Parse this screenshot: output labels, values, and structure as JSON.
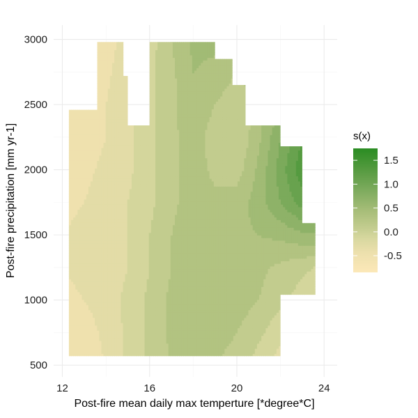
{
  "chart_data": {
    "type": "heatmap",
    "subtype": "filled-contour",
    "title": "",
    "xlabel": "Post-fire mean daily max temperture [*degree*C]",
    "ylabel": "Post-fire precipitation [mm yr-1]",
    "xlim": [
      11.6,
      24.6
    ],
    "ylim": [
      410,
      3110
    ],
    "x_ticks": [
      12,
      16,
      20,
      24
    ],
    "y_ticks": [
      500,
      1000,
      1500,
      2000,
      2500,
      3000
    ],
    "grid": true,
    "legend": {
      "title": "s(x)",
      "placement": "right",
      "range": [
        -0.85,
        1.75
      ],
      "ticks": [
        -0.5,
        0.0,
        0.5,
        1.0,
        1.5
      ],
      "tick_labels": [
        "-0.5",
        "0.0",
        "0.5",
        "1.0",
        "1.5"
      ],
      "color_low": "#fce8b8",
      "color_high": "#2a8c22"
    },
    "levels": [
      -0.8,
      -0.6,
      -0.4,
      -0.2,
      0.0,
      0.2,
      0.4,
      0.6,
      0.8,
      1.0,
      1.2,
      1.4,
      1.6
    ],
    "color_stops": [
      {
        "value": -0.85,
        "color": "#fce8b8"
      },
      {
        "value": -0.45,
        "color": "#ede0ad"
      },
      {
        "value": -0.15,
        "color": "#d8d8a0"
      },
      {
        "value": 0.1,
        "color": "#c2cc8e"
      },
      {
        "value": 0.45,
        "color": "#a6bd78"
      },
      {
        "value": 0.8,
        "color": "#84ae62"
      },
      {
        "value": 1.2,
        "color": "#5f9e47"
      },
      {
        "value": 1.75,
        "color": "#2a8c22"
      }
    ],
    "data_region": [
      {
        "x_range": [
          12.3,
          13.6
        ],
        "y_range": [
          570,
          1500
        ]
      },
      {
        "x_range": [
          12.3,
          13.6
        ],
        "y_range": [
          1500,
          2460
        ]
      },
      {
        "x_range": [
          13.6,
          14.8
        ],
        "y_range": [
          570,
          2980
        ]
      },
      {
        "x_range": [
          14.8,
          15.0
        ],
        "y_range": [
          570,
          2720
        ]
      },
      {
        "x_range": [
          15.0,
          16.0
        ],
        "y_range": [
          570,
          2340
        ]
      },
      {
        "x_range": [
          16.0,
          19.0
        ],
        "y_range": [
          570,
          2980
        ]
      },
      {
        "x_range": [
          19.0,
          19.8
        ],
        "y_range": [
          570,
          2850
        ]
      },
      {
        "x_range": [
          19.8,
          20.4
        ],
        "y_range": [
          570,
          2650
        ]
      },
      {
        "x_range": [
          20.4,
          22.0
        ],
        "y_range": [
          570,
          2340
        ]
      },
      {
        "x_range": [
          22.0,
          23.0
        ],
        "y_range": [
          1040,
          2180
        ]
      },
      {
        "x_range": [
          23.0,
          23.6
        ],
        "y_range": [
          1040,
          1590
        ]
      }
    ],
    "surface": {
      "x": [
        12.0,
        13.0,
        14.0,
        15.0,
        16.0,
        17.0,
        18.0,
        19.0,
        20.0,
        21.0,
        22.0,
        23.0,
        24.0
      ],
      "y": [
        500,
        750,
        1000,
        1250,
        1500,
        1750,
        2000,
        2250,
        2500,
        2750,
        3000
      ],
      "z": [
        [
          -0.6,
          -0.5,
          -0.4,
          -0.15,
          0.05,
          0.2,
          0.25,
          0.2,
          0.1,
          -0.1,
          -0.3,
          -0.5,
          -0.7
        ],
        [
          -0.55,
          -0.5,
          -0.35,
          -0.15,
          0.05,
          0.25,
          0.3,
          0.3,
          0.2,
          0.05,
          -0.15,
          -0.35,
          -0.5
        ],
        [
          -0.45,
          -0.4,
          -0.3,
          -0.15,
          0.05,
          0.25,
          0.35,
          0.35,
          0.3,
          0.2,
          0.05,
          -0.1,
          -0.3
        ],
        [
          -0.4,
          -0.35,
          -0.3,
          -0.2,
          0.0,
          0.2,
          0.35,
          0.35,
          0.3,
          0.25,
          0.15,
          0.05,
          -0.05
        ],
        [
          -0.4,
          -0.35,
          -0.3,
          -0.2,
          0.0,
          0.2,
          0.35,
          0.35,
          0.35,
          0.4,
          0.45,
          0.55,
          0.6
        ],
        [
          -0.45,
          -0.4,
          -0.3,
          -0.2,
          -0.05,
          0.15,
          0.3,
          0.25,
          0.3,
          0.5,
          0.8,
          1.1,
          1.3
        ],
        [
          -0.5,
          -0.45,
          -0.35,
          -0.25,
          -0.05,
          0.15,
          0.3,
          0.15,
          0.1,
          0.45,
          0.9,
          1.35,
          1.7
        ],
        [
          -0.55,
          -0.5,
          -0.4,
          -0.25,
          -0.05,
          0.15,
          0.3,
          0.1,
          0.0,
          0.35,
          0.8,
          1.2,
          1.6
        ],
        [
          -0.6,
          -0.55,
          -0.4,
          -0.25,
          -0.05,
          0.15,
          0.35,
          0.2,
          0.05,
          0.3,
          0.6,
          0.9,
          1.2
        ],
        [
          -0.7,
          -0.6,
          -0.45,
          -0.25,
          -0.05,
          0.15,
          0.4,
          0.35,
          0.2,
          0.3,
          0.5,
          0.7,
          0.9
        ],
        [
          -0.8,
          -0.7,
          -0.5,
          -0.3,
          -0.1,
          0.2,
          0.45,
          0.45,
          0.3,
          0.3,
          0.4,
          0.5,
          0.6
        ]
      ]
    }
  }
}
